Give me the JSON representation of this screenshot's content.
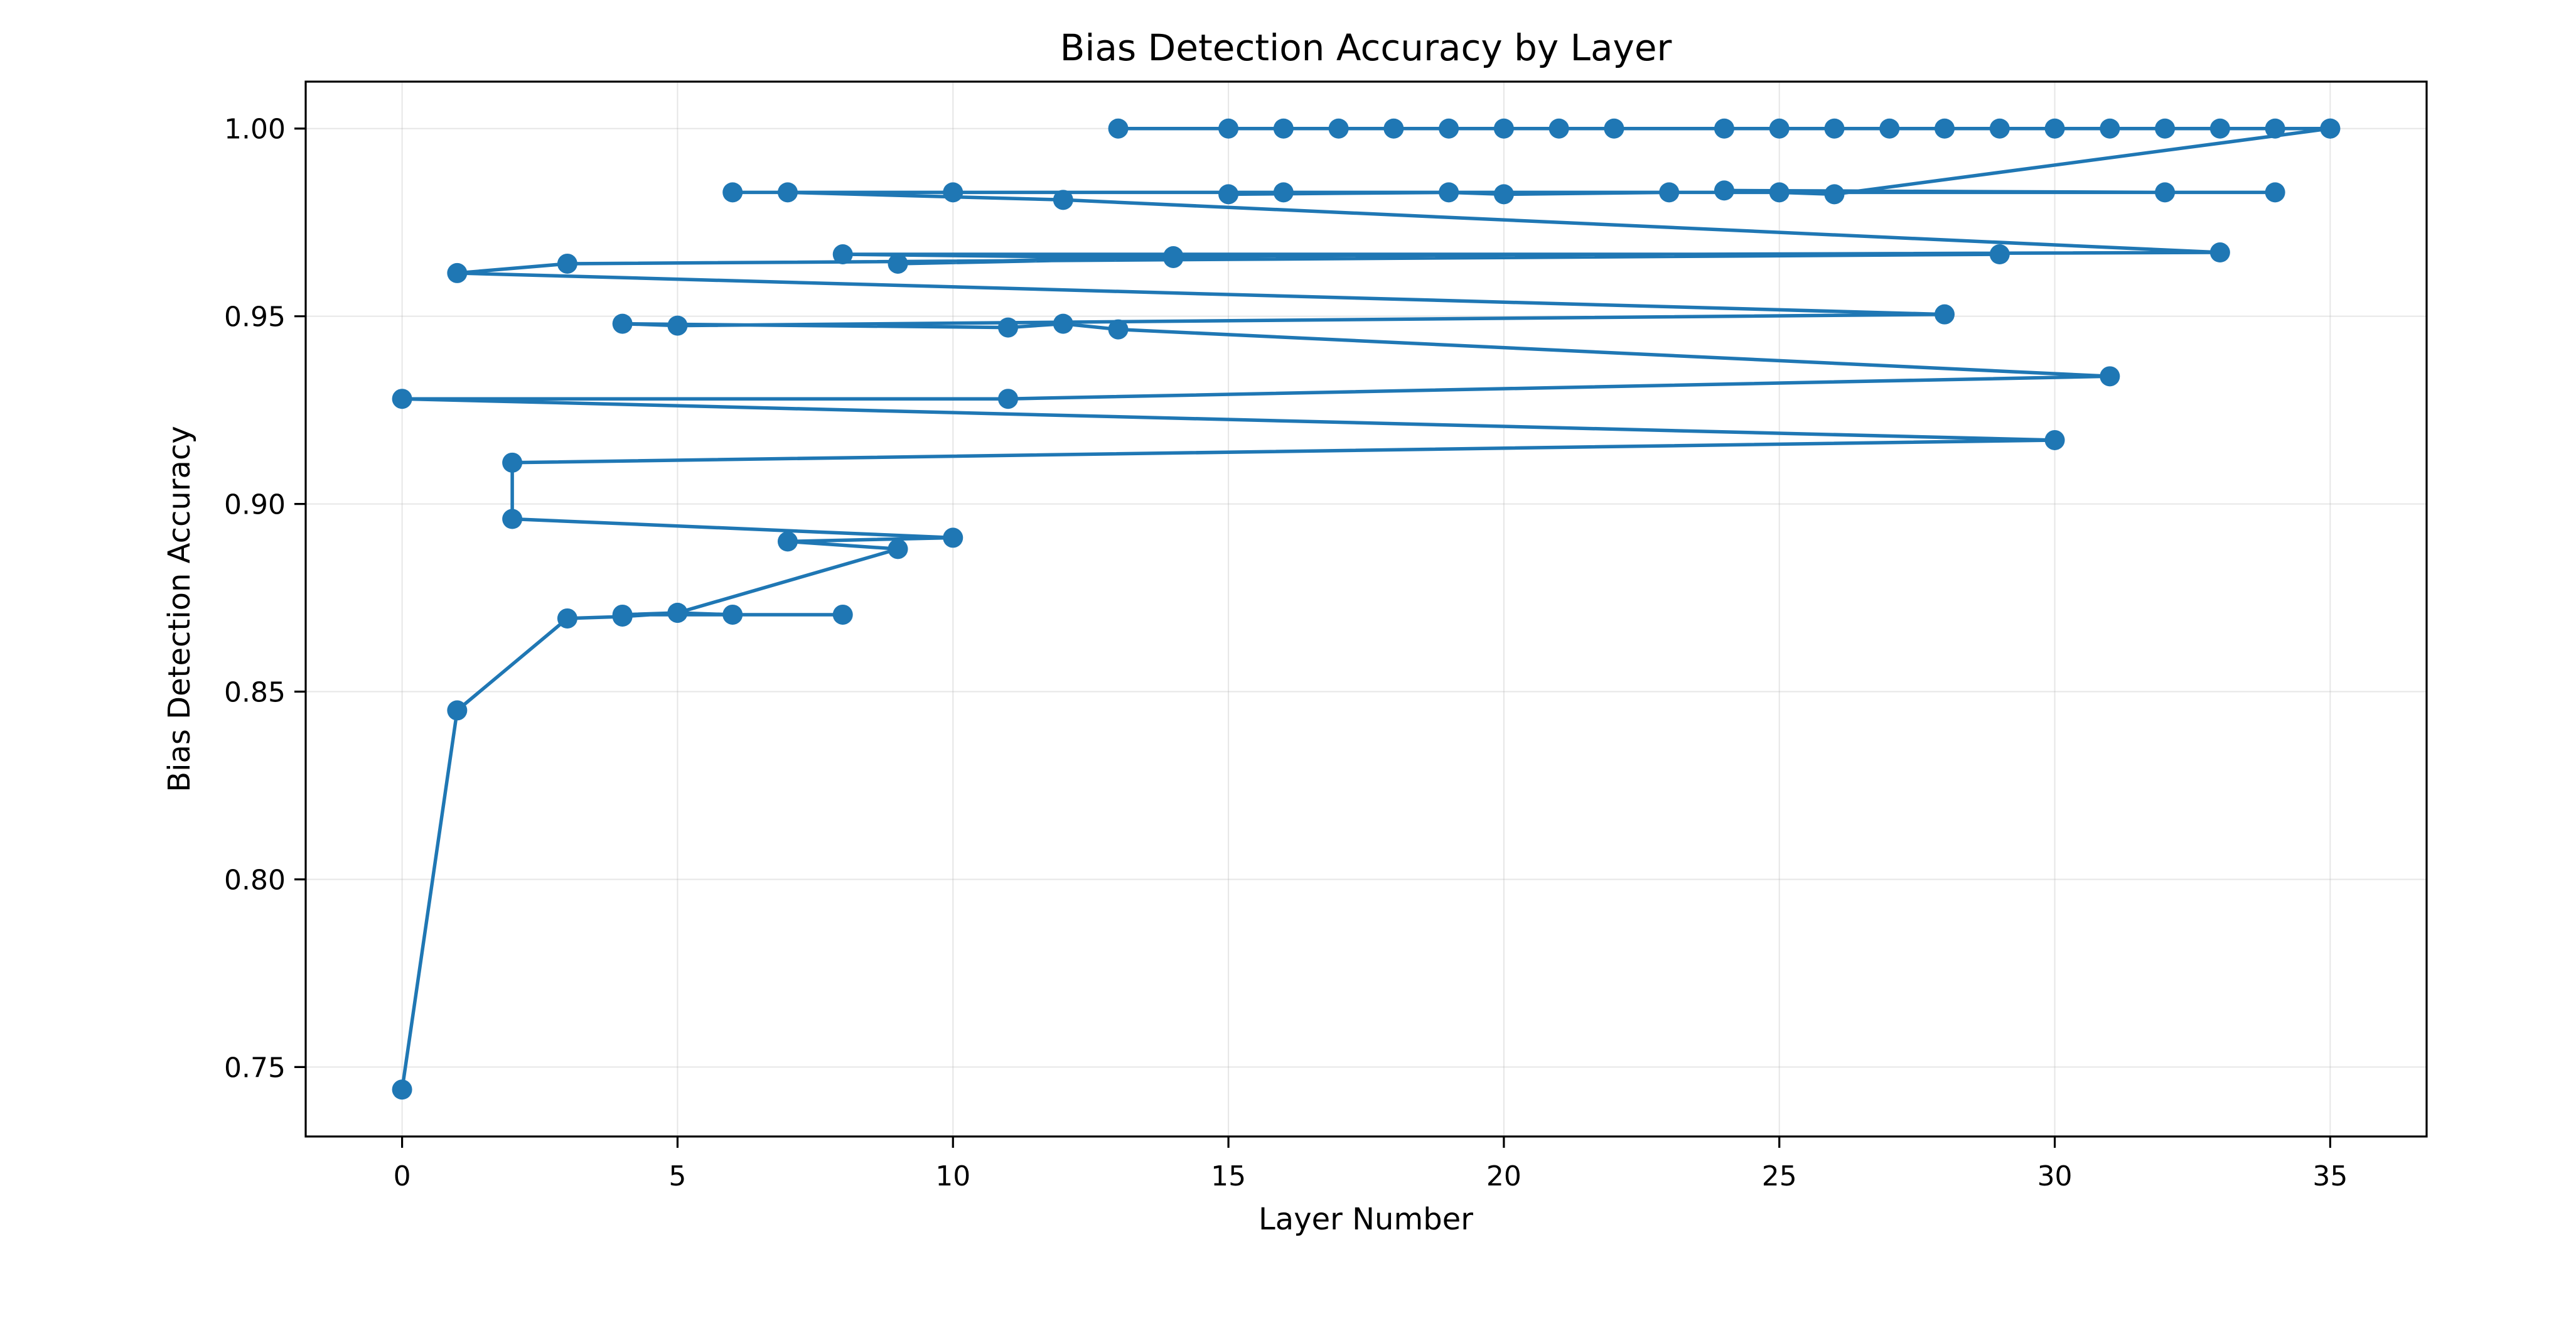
{
  "chart_data": {
    "type": "line",
    "title": "Bias Detection Accuracy by Layer",
    "xlabel": "Layer Number",
    "ylabel": "Bias Detection Accuracy",
    "xlim": [
      -1.75,
      36.75
    ],
    "ylim": [
      0.7315,
      1.0125
    ],
    "xticks": [
      0,
      5,
      10,
      15,
      20,
      25,
      30,
      35
    ],
    "yticks": [
      0.75,
      0.8,
      0.85,
      0.9,
      0.95,
      1.0
    ],
    "xtick_labels": [
      "0",
      "5",
      "10",
      "15",
      "20",
      "25",
      "30",
      "35"
    ],
    "ytick_labels": [
      "0.75",
      "0.80",
      "0.85",
      "0.90",
      "0.95",
      "1.00"
    ],
    "grid": true,
    "marker": "circle",
    "color": "#1f77b4",
    "series": [
      {
        "x": [
          0,
          1,
          3,
          4,
          5,
          6,
          8,
          4,
          5,
          9,
          7,
          10,
          2,
          2,
          30,
          0,
          11,
          31,
          13,
          12,
          11,
          4,
          5,
          28,
          1,
          3,
          29,
          8,
          14,
          9,
          14,
          33,
          12,
          7,
          10,
          6,
          34,
          16,
          15,
          19,
          20,
          23,
          32,
          24,
          25,
          26,
          35,
          13,
          15,
          16,
          17,
          18,
          19,
          20,
          21,
          22,
          24,
          25,
          26,
          27,
          28,
          29,
          30,
          31,
          32,
          33,
          34,
          35
        ],
        "y": [
          0.744,
          0.845,
          0.8695,
          0.87,
          0.871,
          0.8705,
          0.8705,
          0.8705,
          0.871,
          0.888,
          0.89,
          0.891,
          0.896,
          0.911,
          0.917,
          0.928,
          0.928,
          0.934,
          0.9465,
          0.948,
          0.947,
          0.948,
          0.9475,
          0.9505,
          0.9615,
          0.964,
          0.9665,
          0.9665,
          0.9655,
          0.964,
          0.966,
          0.967,
          0.981,
          0.983,
          0.983,
          0.983,
          0.983,
          0.983,
          0.9825,
          0.983,
          0.9825,
          0.983,
          0.983,
          0.9835,
          0.983,
          0.9825,
          1.0,
          1.0,
          1.0,
          1.0,
          1.0,
          1.0,
          1.0,
          1.0,
          1.0,
          1.0,
          1.0,
          1.0,
          1.0,
          1.0,
          1.0,
          1.0,
          1.0,
          1.0,
          1.0,
          1.0,
          1.0,
          1.0
        ]
      }
    ]
  }
}
